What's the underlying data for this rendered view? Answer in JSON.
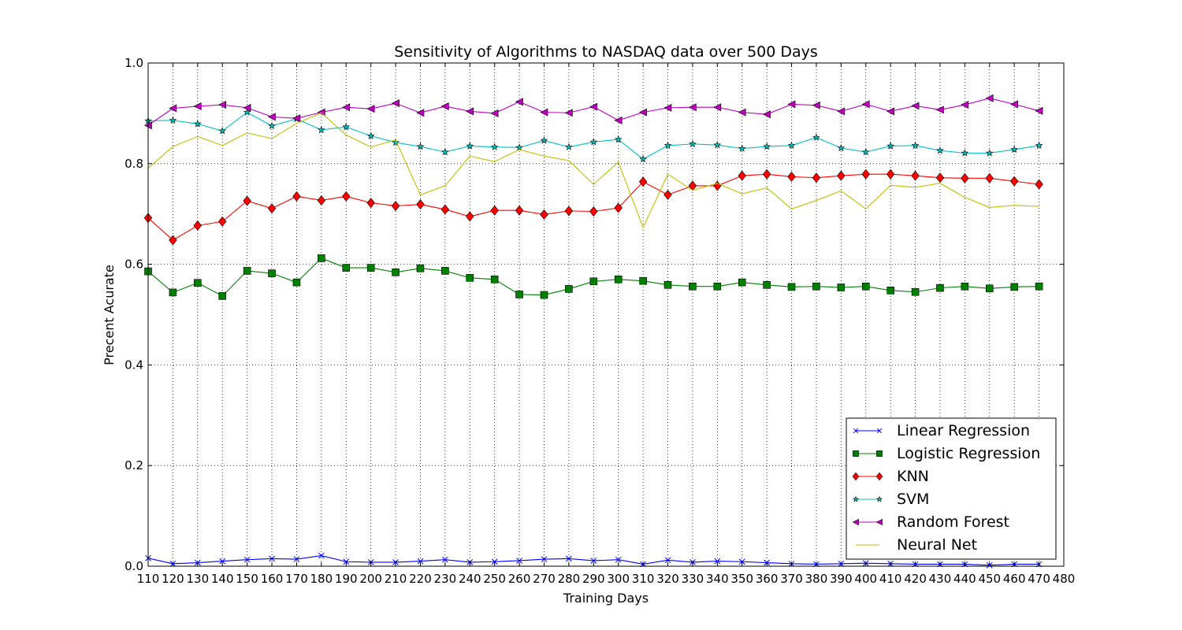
{
  "chart_data": {
    "type": "line",
    "title": "Sensitivity of Algorithms to NASDAQ data over 500 Days",
    "xlabel": "Training Days",
    "ylabel": "Precent Acurate",
    "xlim": [
      110,
      480
    ],
    "ylim": [
      0.0,
      1.0
    ],
    "xticks": [
      110,
      120,
      130,
      140,
      150,
      160,
      170,
      180,
      190,
      200,
      210,
      220,
      230,
      240,
      250,
      260,
      270,
      280,
      290,
      300,
      310,
      320,
      330,
      340,
      350,
      360,
      370,
      380,
      390,
      400,
      410,
      420,
      430,
      440,
      450,
      460,
      470,
      480
    ],
    "yticks": [
      0.0,
      0.2,
      0.4,
      0.6,
      0.8,
      1.0
    ],
    "ytick_labels": [
      "0.0",
      "0.2",
      "0.4",
      "0.6",
      "0.8",
      "1.0"
    ],
    "grid": true,
    "legend_position": "lower-right",
    "x": [
      110,
      120,
      130,
      140,
      150,
      160,
      170,
      180,
      190,
      200,
      210,
      220,
      230,
      240,
      250,
      260,
      270,
      280,
      290,
      300,
      310,
      320,
      330,
      340,
      350,
      360,
      370,
      380,
      390,
      400,
      410,
      420,
      430,
      440,
      450,
      460,
      470
    ],
    "series": [
      {
        "name": "Linear Regression",
        "color": "#0000ff",
        "marker": "x",
        "values": [
          0.016,
          0.005,
          0.007,
          0.01,
          0.013,
          0.015,
          0.014,
          0.021,
          0.009,
          0.008,
          0.008,
          0.01,
          0.013,
          0.008,
          0.009,
          0.011,
          0.014,
          0.015,
          0.011,
          0.013,
          0.004,
          0.012,
          0.008,
          0.01,
          0.009,
          0.007,
          0.005,
          0.004,
          0.005,
          0.006,
          0.005,
          0.004,
          0.004,
          0.004,
          0.002,
          0.004,
          0.004
        ]
      },
      {
        "name": "Logistic Regression",
        "color": "#008000",
        "marker": "square",
        "values": [
          0.586,
          0.544,
          0.563,
          0.537,
          0.587,
          0.582,
          0.564,
          0.612,
          0.593,
          0.593,
          0.584,
          0.592,
          0.587,
          0.573,
          0.57,
          0.54,
          0.539,
          0.551,
          0.566,
          0.57,
          0.567,
          0.559,
          0.556,
          0.556,
          0.564,
          0.559,
          0.555,
          0.556,
          0.554,
          0.556,
          0.548,
          0.545,
          0.553,
          0.556,
          0.552,
          0.555,
          0.556
        ]
      },
      {
        "name": "KNN",
        "color": "#ff0000",
        "marker": "diamond",
        "values": [
          0.692,
          0.648,
          0.677,
          0.685,
          0.726,
          0.711,
          0.735,
          0.727,
          0.735,
          0.722,
          0.716,
          0.719,
          0.709,
          0.695,
          0.707,
          0.707,
          0.699,
          0.706,
          0.705,
          0.712,
          0.764,
          0.738,
          0.756,
          0.756,
          0.776,
          0.779,
          0.774,
          0.772,
          0.776,
          0.779,
          0.779,
          0.776,
          0.772,
          0.771,
          0.771,
          0.765,
          0.759
        ]
      },
      {
        "name": "SVM",
        "color": "#00bfbf",
        "marker": "star",
        "values": [
          0.885,
          0.886,
          0.879,
          0.865,
          0.902,
          0.875,
          0.889,
          0.867,
          0.873,
          0.855,
          0.842,
          0.834,
          0.823,
          0.835,
          0.833,
          0.832,
          0.846,
          0.833,
          0.843,
          0.848,
          0.809,
          0.836,
          0.839,
          0.837,
          0.83,
          0.834,
          0.836,
          0.852,
          0.831,
          0.823,
          0.835,
          0.836,
          0.826,
          0.821,
          0.821,
          0.828,
          0.836
        ]
      },
      {
        "name": "Random Forest",
        "color": "#bf00bf",
        "marker": "triangle-left",
        "values": [
          0.876,
          0.91,
          0.914,
          0.917,
          0.911,
          0.893,
          0.89,
          0.902,
          0.912,
          0.909,
          0.92,
          0.901,
          0.914,
          0.904,
          0.9,
          0.923,
          0.902,
          0.901,
          0.913,
          0.886,
          0.902,
          0.911,
          0.912,
          0.912,
          0.902,
          0.898,
          0.918,
          0.916,
          0.904,
          0.918,
          0.904,
          0.915,
          0.907,
          0.917,
          0.93,
          0.918,
          0.905
        ]
      },
      {
        "name": "Neural Net",
        "color": "#bfbf00",
        "marker": "none",
        "values": [
          0.791,
          0.834,
          0.854,
          0.836,
          0.861,
          0.85,
          0.88,
          0.901,
          0.857,
          0.833,
          0.847,
          0.738,
          0.756,
          0.815,
          0.804,
          0.828,
          0.815,
          0.806,
          0.759,
          0.803,
          0.673,
          0.779,
          0.747,
          0.761,
          0.74,
          0.752,
          0.71,
          0.727,
          0.746,
          0.71,
          0.757,
          0.753,
          0.761,
          0.733,
          0.713,
          0.717,
          0.715
        ]
      }
    ]
  }
}
